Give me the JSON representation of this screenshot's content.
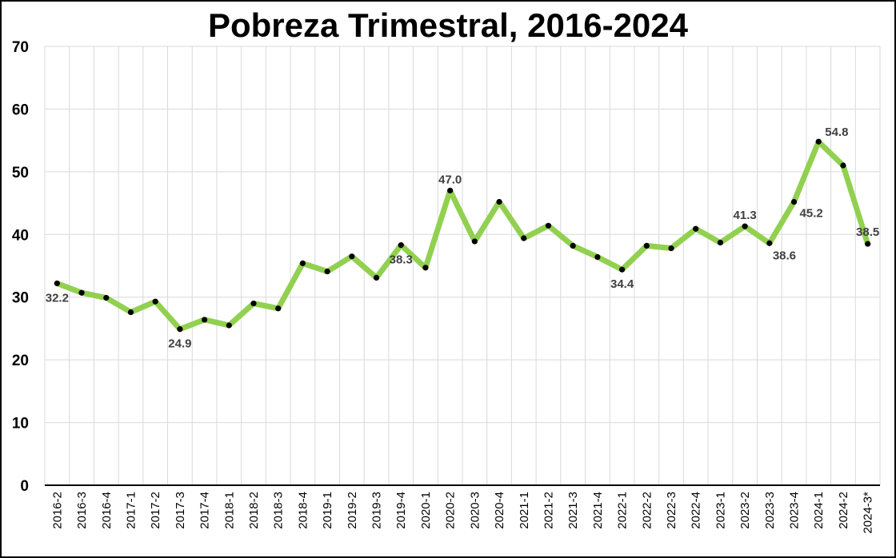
{
  "chart_data": {
    "type": "line",
    "title": "Pobreza Trimestral, 2016-2024",
    "xlabel": "",
    "ylabel": "",
    "ylim": [
      0,
      70
    ],
    "yticks": [
      "0",
      "10",
      "20",
      "30",
      "40",
      "50",
      "60",
      "70"
    ],
    "grid": true,
    "legend": "none",
    "categories": [
      "2016-2",
      "2016-3",
      "2016-4",
      "2017-1",
      "2017-2",
      "2017-3",
      "2017-4",
      "2018-1",
      "2018-2",
      "2018-3",
      "2018-4",
      "2019-1",
      "2019-2",
      "2019-3",
      "2019-4",
      "2020-1",
      "2020-2",
      "2020-3",
      "2020-4",
      "2021-1",
      "2021-2",
      "2021-3",
      "2021-4",
      "2022-1",
      "2022-2",
      "2022-3",
      "2022-4",
      "2023-1",
      "2023-2",
      "2023-3",
      "2023-4",
      "2024-1",
      "2024-2",
      "2024-3*"
    ],
    "series": [
      {
        "values": [
          32.2,
          30.7,
          29.9,
          27.6,
          29.3,
          24.9,
          26.4,
          25.5,
          29.0,
          28.2,
          35.4,
          34.1,
          36.5,
          33.1,
          38.3,
          34.7,
          47.0,
          38.9,
          45.2,
          39.4,
          41.4,
          38.2,
          36.4,
          34.4,
          38.2,
          37.8,
          40.9,
          38.7,
          41.3,
          38.6,
          45.2,
          54.8,
          51.0,
          38.5
        ],
        "color": "#92d050"
      }
    ],
    "data_labels": [
      {
        "category": "2016-2",
        "text": "32.2",
        "position": "below"
      },
      {
        "category": "2017-3",
        "text": "24.9",
        "position": "below"
      },
      {
        "category": "2019-4",
        "text": "38.3",
        "position": "below"
      },
      {
        "category": "2020-2",
        "text": "47.0",
        "position": "above"
      },
      {
        "category": "2022-1",
        "text": "34.4",
        "position": "below"
      },
      {
        "category": "2023-2",
        "text": "41.3",
        "position": "above"
      },
      {
        "category": "2023-3",
        "text": "38.6",
        "position": "below-right"
      },
      {
        "category": "2023-4",
        "text": "45.2",
        "position": "right"
      },
      {
        "category": "2024-1",
        "text": "54.8",
        "position": "right"
      },
      {
        "category": "2024-3*",
        "text": "38.5",
        "position": "above"
      }
    ],
    "colors": {
      "line": "#92d050",
      "marker": "#000000",
      "grid": "#d9d9d9",
      "axis": "#000000",
      "label": "#404040"
    }
  }
}
